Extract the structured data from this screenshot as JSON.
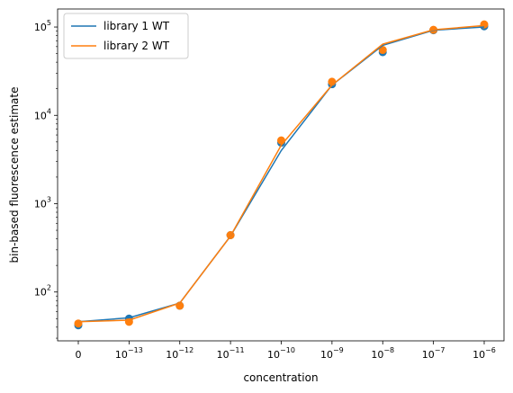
{
  "chart_data": {
    "type": "line",
    "xlabel": "concentration",
    "ylabel": "bin-based fluorescence estimate",
    "x_scale": "log, with 0 at the first position",
    "y_scale": "log",
    "ylim": [
      28,
      160000
    ],
    "grid": false,
    "legend_position": "top-left",
    "x_categories": [
      "0",
      "1e-13",
      "1e-12",
      "1e-11",
      "1e-10",
      "1e-9",
      "1e-8",
      "1e-7",
      "1e-6"
    ],
    "x_tick_labels": [
      {
        "base": "0",
        "exp": ""
      },
      {
        "base": "10",
        "exp": "−13"
      },
      {
        "base": "10",
        "exp": "−12"
      },
      {
        "base": "10",
        "exp": "−11"
      },
      {
        "base": "10",
        "exp": "−10"
      },
      {
        "base": "10",
        "exp": "−9"
      },
      {
        "base": "10",
        "exp": "−8"
      },
      {
        "base": "10",
        "exp": "−7"
      },
      {
        "base": "10",
        "exp": "−6"
      }
    ],
    "y_ticks": [
      {
        "value": 100,
        "base": "10",
        "exp": "2"
      },
      {
        "value": 1000,
        "base": "10",
        "exp": "3"
      },
      {
        "value": 10000,
        "base": "10",
        "exp": "4"
      },
      {
        "value": 100000,
        "base": "10",
        "exp": "5"
      }
    ],
    "series": [
      {
        "name": "library 1 WT",
        "color": "#1f77b4",
        "line": [
          46,
          51,
          75,
          430,
          4000,
          22000,
          62000,
          92000,
          100000
        ],
        "points": [
          42,
          50,
          70,
          440,
          4900,
          22500,
          52000,
          92000,
          102000
        ]
      },
      {
        "name": "library 2 WT",
        "color": "#ff7f0e",
        "line": [
          46,
          48,
          75,
          430,
          4600,
          22000,
          64000,
          93000,
          104000
        ],
        "points": [
          44,
          46,
          70,
          440,
          5200,
          24000,
          55000,
          93000,
          107000
        ]
      }
    ]
  }
}
